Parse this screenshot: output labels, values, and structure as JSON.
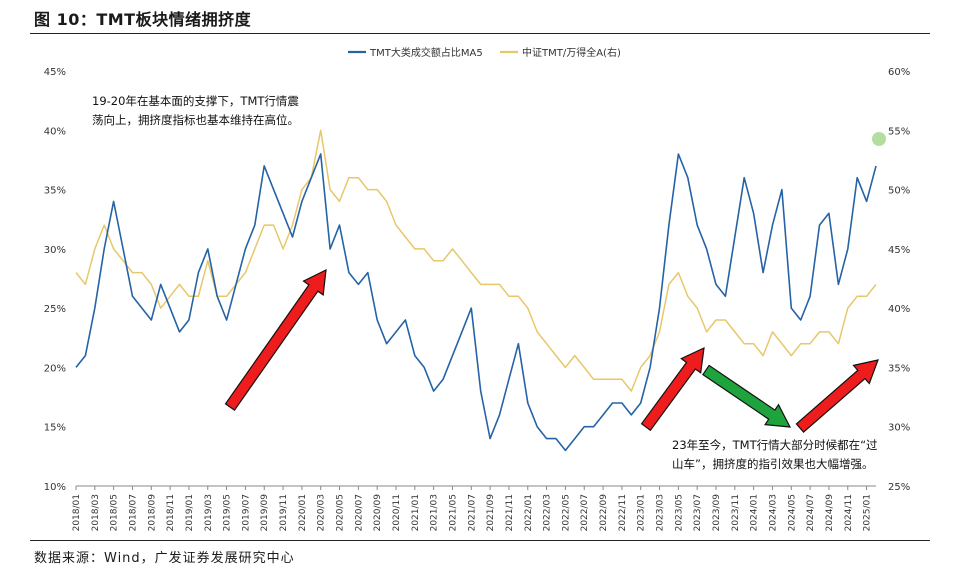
{
  "figure": {
    "title": "图 10：TMT板块情绪拥挤度",
    "source": "数据来源：Wind，广发证券发展研究中心"
  },
  "annotations": [
    {
      "id": "note1",
      "lines": [
        "19-20年在基本面的支撑下，TMT行情震",
        "荡向上，拥挤度指标也基本维持在高位。"
      ]
    },
    {
      "id": "note2",
      "lines": [
        "23年至今，TMT行情大部分时候都在“过",
        "山车”，拥挤度的指引效果也大幅增强。"
      ]
    }
  ],
  "colors": {
    "series_blue": "#2563a6",
    "series_gold": "#e8c76a",
    "arrow_red": "#ee1c1c",
    "arrow_green": "#1fa33c",
    "marker_green": "#a7d88f"
  },
  "chart_data": {
    "type": "line",
    "title": "",
    "legend_position": "top-center",
    "y_left": {
      "min": 10,
      "max": 45,
      "ticks": [
        "10%",
        "15%",
        "20%",
        "25%",
        "30%",
        "35%",
        "40%",
        "45%"
      ]
    },
    "y_right": {
      "min": 25,
      "max": 60,
      "ticks": [
        "25%",
        "30%",
        "35%",
        "40%",
        "45%",
        "50%",
        "55%",
        "60%"
      ]
    },
    "x_ticks": [
      "2018/01",
      "2018/03",
      "2018/05",
      "2018/07",
      "2018/09",
      "2018/11",
      "2019/01",
      "2019/03",
      "2019/05",
      "2019/07",
      "2019/09",
      "2019/11",
      "2020/01",
      "2020/03",
      "2020/05",
      "2020/07",
      "2020/09",
      "2020/11",
      "2021/01",
      "2021/03",
      "2021/05",
      "2021/07",
      "2021/09",
      "2021/11",
      "2022/01",
      "2022/03",
      "2022/05",
      "2022/07",
      "2022/09",
      "2022/11",
      "2023/01",
      "2023/03",
      "2023/05",
      "2023/07",
      "2023/09",
      "2023/11",
      "2024/01",
      "2024/03",
      "2024/05",
      "2024/07",
      "2024/09",
      "2024/11",
      "2025/01"
    ],
    "series": [
      {
        "name": "TMT大类成交额占比MA5",
        "axis": "left",
        "x": [
          "2018/01",
          "2018/02",
          "2018/03",
          "2018/04",
          "2018/05",
          "2018/06",
          "2018/07",
          "2018/08",
          "2018/09",
          "2018/10",
          "2018/11",
          "2018/12",
          "2019/01",
          "2019/02",
          "2019/03",
          "2019/04",
          "2019/05",
          "2019/06",
          "2019/07",
          "2019/08",
          "2019/09",
          "2019/10",
          "2019/11",
          "2019/12",
          "2020/01",
          "2020/02",
          "2020/03",
          "2020/04",
          "2020/05",
          "2020/06",
          "2020/07",
          "2020/08",
          "2020/09",
          "2020/10",
          "2020/11",
          "2020/12",
          "2021/01",
          "2021/02",
          "2021/03",
          "2021/04",
          "2021/05",
          "2021/06",
          "2021/07",
          "2021/08",
          "2021/09",
          "2021/10",
          "2021/11",
          "2021/12",
          "2022/01",
          "2022/02",
          "2022/03",
          "2022/04",
          "2022/05",
          "2022/06",
          "2022/07",
          "2022/08",
          "2022/09",
          "2022/10",
          "2022/11",
          "2022/12",
          "2023/01",
          "2023/02",
          "2023/03",
          "2023/04",
          "2023/05",
          "2023/06",
          "2023/07",
          "2023/08",
          "2023/09",
          "2023/10",
          "2023/11",
          "2023/12",
          "2024/01",
          "2024/02",
          "2024/03",
          "2024/04",
          "2024/05",
          "2024/06",
          "2024/07",
          "2024/08",
          "2024/09",
          "2024/10",
          "2024/11",
          "2024/12",
          "2025/01",
          "2025/02"
        ],
        "values": [
          20,
          21,
          25,
          30,
          34,
          30,
          26,
          25,
          24,
          27,
          25,
          23,
          24,
          28,
          30,
          26,
          24,
          27,
          30,
          32,
          37,
          35,
          33,
          31,
          34,
          36,
          38,
          30,
          32,
          28,
          27,
          28,
          24,
          22,
          23,
          24,
          21,
          20,
          18,
          19,
          21,
          23,
          25,
          18,
          14,
          16,
          19,
          22,
          17,
          15,
          14,
          14,
          13,
          14,
          15,
          15,
          16,
          17,
          17,
          16,
          17,
          20,
          25,
          32,
          38,
          36,
          32,
          30,
          27,
          26,
          31,
          36,
          33,
          28,
          32,
          35,
          25,
          24,
          26,
          32,
          33,
          27,
          30,
          36,
          34,
          37
        ],
        "color": "#2563a6"
      },
      {
        "name": "中证TMT/万得全A(右)",
        "axis": "right",
        "x": [
          "2018/01",
          "2018/02",
          "2018/03",
          "2018/04",
          "2018/05",
          "2018/06",
          "2018/07",
          "2018/08",
          "2018/09",
          "2018/10",
          "2018/11",
          "2018/12",
          "2019/01",
          "2019/02",
          "2019/03",
          "2019/04",
          "2019/05",
          "2019/06",
          "2019/07",
          "2019/08",
          "2019/09",
          "2019/10",
          "2019/11",
          "2019/12",
          "2020/01",
          "2020/02",
          "2020/03",
          "2020/04",
          "2020/05",
          "2020/06",
          "2020/07",
          "2020/08",
          "2020/09",
          "2020/10",
          "2020/11",
          "2020/12",
          "2021/01",
          "2021/02",
          "2021/03",
          "2021/04",
          "2021/05",
          "2021/06",
          "2021/07",
          "2021/08",
          "2021/09",
          "2021/10",
          "2021/11",
          "2021/12",
          "2022/01",
          "2022/02",
          "2022/03",
          "2022/04",
          "2022/05",
          "2022/06",
          "2022/07",
          "2022/08",
          "2022/09",
          "2022/10",
          "2022/11",
          "2022/12",
          "2023/01",
          "2023/02",
          "2023/03",
          "2023/04",
          "2023/05",
          "2023/06",
          "2023/07",
          "2023/08",
          "2023/09",
          "2023/10",
          "2023/11",
          "2023/12",
          "2024/01",
          "2024/02",
          "2024/03",
          "2024/04",
          "2024/05",
          "2024/06",
          "2024/07",
          "2024/08",
          "2024/09",
          "2024/10",
          "2024/11",
          "2024/12",
          "2025/01",
          "2025/02"
        ],
        "values": [
          43,
          42,
          45,
          47,
          45,
          44,
          43,
          43,
          42,
          40,
          41,
          42,
          41,
          41,
          44,
          41,
          41,
          42,
          43,
          45,
          47,
          47,
          45,
          47,
          50,
          51,
          55,
          50,
          49,
          51,
          51,
          50,
          50,
          49,
          47,
          46,
          45,
          45,
          44,
          44,
          45,
          44,
          43,
          42,
          42,
          42,
          41,
          41,
          40,
          38,
          37,
          36,
          35,
          36,
          35,
          34,
          34,
          34,
          34,
          33,
          35,
          36,
          38,
          42,
          43,
          41,
          40,
          38,
          39,
          39,
          38,
          37,
          37,
          36,
          38,
          37,
          36,
          37,
          37,
          38,
          38,
          37,
          40,
          41,
          41,
          42
        ],
        "color": "#e8c76a"
      }
    ]
  }
}
